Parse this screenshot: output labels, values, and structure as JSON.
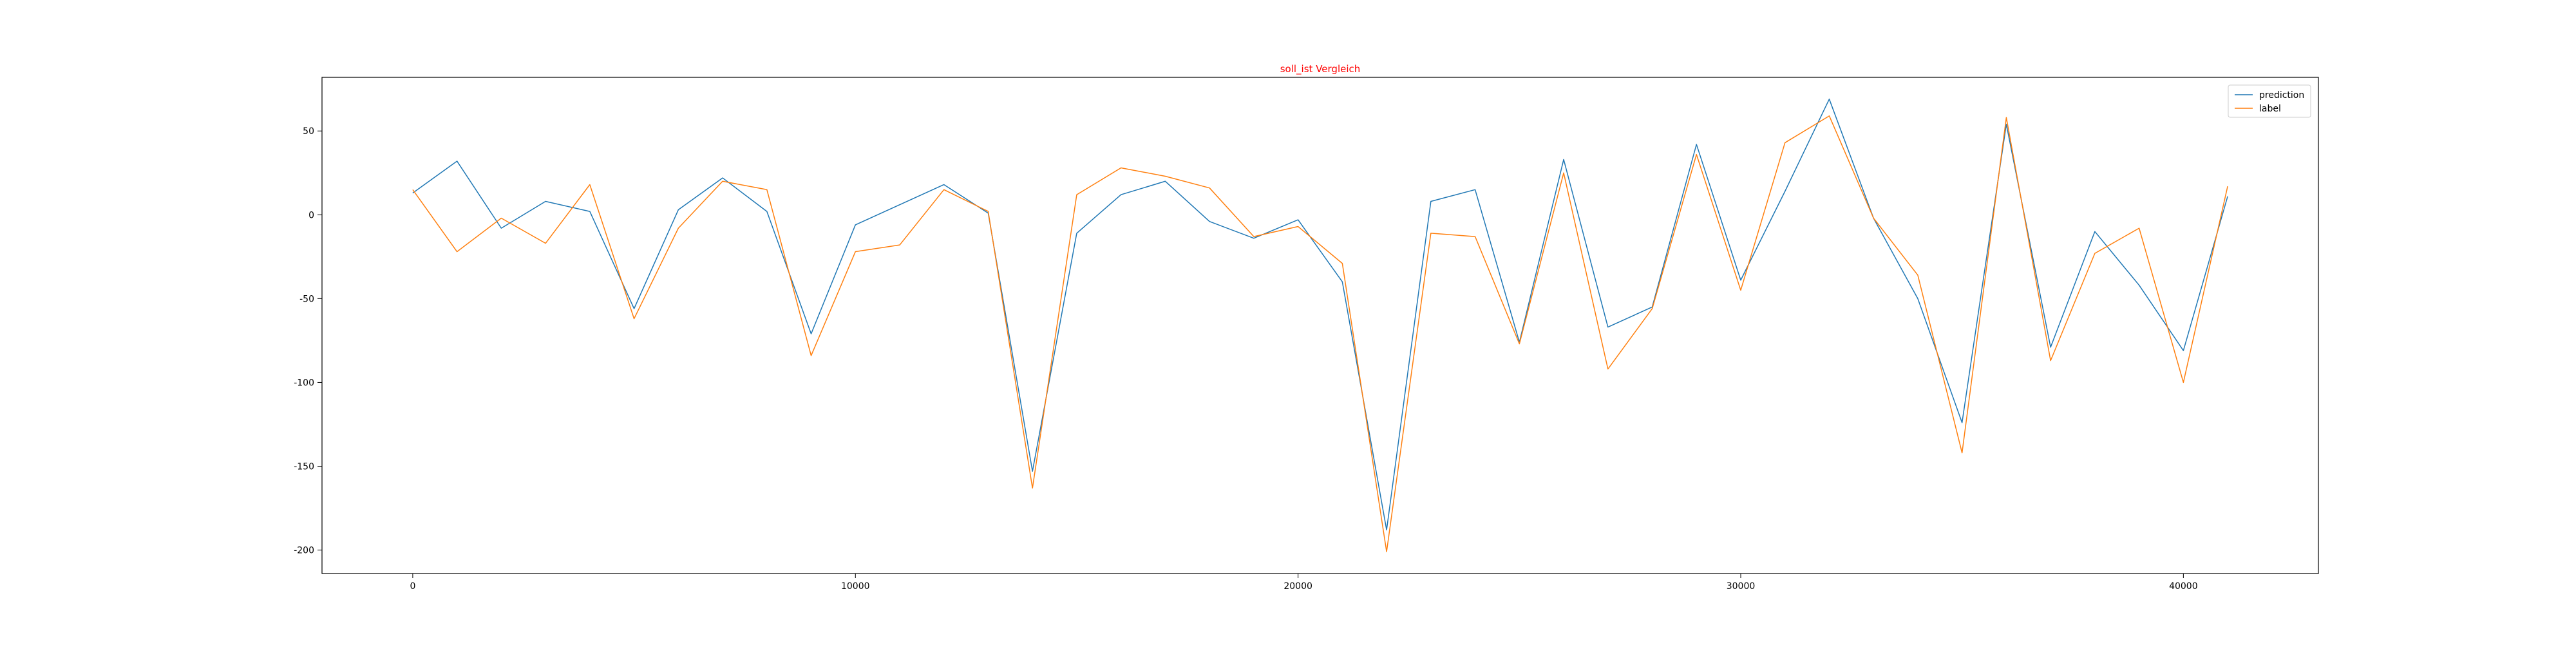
{
  "chart_data": {
    "type": "line",
    "title": "soll_ist Vergleich",
    "title_color": "#ff0000",
    "xlabel": "",
    "ylabel": "",
    "xlim": [
      -2050,
      43050
    ],
    "ylim": [
      -214,
      82
    ],
    "x_ticks": [
      0,
      10000,
      20000,
      30000,
      40000
    ],
    "y_ticks": [
      50,
      0,
      -50,
      -100,
      -150,
      -200
    ],
    "grid": false,
    "legend_position": "top-right",
    "x": [
      0,
      1000,
      2000,
      3000,
      4000,
      5000,
      6000,
      7000,
      8000,
      9000,
      10000,
      11000,
      12000,
      13000,
      14000,
      15000,
      16000,
      17000,
      18000,
      19000,
      20000,
      21000,
      22000,
      23000,
      24000,
      25000,
      26000,
      27000,
      28000,
      29000,
      30000,
      31000,
      32000,
      33000,
      34000,
      35000,
      36000,
      37000,
      38000,
      39000,
      40000,
      41000
    ],
    "series": [
      {
        "name": "prediction",
        "color": "#1f77b4",
        "values": [
          13,
          32,
          -8,
          8,
          2,
          -56,
          3,
          22,
          2,
          -71,
          -6,
          6,
          18,
          1,
          -153,
          -11,
          12,
          20,
          -4,
          -14,
          -3,
          -40,
          -188,
          8,
          15,
          -76,
          33,
          -67,
          -55,
          42,
          -39,
          14,
          69,
          -2,
          -50,
          -124,
          54,
          -79,
          -10,
          -42,
          -81,
          11
        ]
      },
      {
        "name": "label",
        "color": "#ff7f0e",
        "values": [
          15,
          -22,
          -2,
          -17,
          18,
          -62,
          -8,
          20,
          15,
          -84,
          -22,
          -18,
          15,
          2,
          -163,
          12,
          28,
          23,
          16,
          -13,
          -7,
          -29,
          -201,
          -11,
          -13,
          -77,
          25,
          -92,
          -56,
          36,
          -45,
          43,
          59,
          -2,
          -36,
          -142,
          58,
          -87,
          -23,
          -8,
          -100,
          17
        ]
      }
    ]
  }
}
